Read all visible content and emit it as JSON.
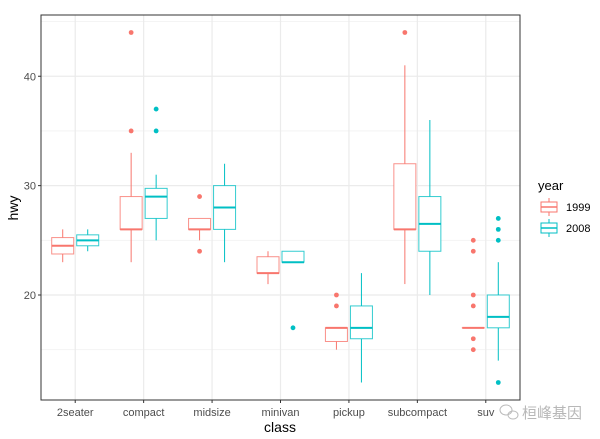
{
  "chart_data": {
    "type": "boxplot",
    "title": "",
    "xlabel": "class",
    "ylabel": "hwy",
    "ylim": [
      10.4,
      45.6
    ],
    "yticks": [
      20,
      30,
      40
    ],
    "grid": true,
    "categories": [
      "2seater",
      "compact",
      "midsize",
      "minivan",
      "pickup",
      "subcompact",
      "suv"
    ],
    "legend": {
      "title": "year",
      "position": "right"
    },
    "series": [
      {
        "name": "1999",
        "color": "#F8766D",
        "boxes": [
          {
            "lower": 23,
            "q1": 23.75,
            "median": 24.5,
            "q3": 25.25,
            "upper": 26,
            "outliers": []
          },
          {
            "lower": 23,
            "q1": 26,
            "median": 26,
            "q3": 29,
            "upper": 33,
            "outliers": [
              35,
              44
            ]
          },
          {
            "lower": 25,
            "q1": 26,
            "median": 26,
            "q3": 27,
            "upper": 27,
            "outliers": [
              29,
              24
            ]
          },
          {
            "lower": 21,
            "q1": 22,
            "median": 22,
            "q3": 23.5,
            "upper": 24,
            "outliers": []
          },
          {
            "lower": 15,
            "q1": 15.75,
            "median": 17,
            "q3": 17,
            "upper": 17,
            "outliers": [
              20,
              19
            ]
          },
          {
            "lower": 21,
            "q1": 26,
            "median": 26,
            "q3": 32,
            "upper": 41,
            "outliers": [
              44
            ]
          },
          {
            "lower": 17,
            "q1": 17,
            "median": 17,
            "q3": 17,
            "upper": 17,
            "outliers": [
              25,
              24,
              20,
              19,
              16,
              15
            ]
          }
        ]
      },
      {
        "name": "2008",
        "color": "#00BFC4",
        "boxes": [
          {
            "lower": 24,
            "q1": 24.5,
            "median": 25,
            "q3": 25.5,
            "upper": 26,
            "outliers": []
          },
          {
            "lower": 25,
            "q1": 27,
            "median": 29,
            "q3": 29.75,
            "upper": 31,
            "outliers": [
              35,
              37
            ]
          },
          {
            "lower": 23,
            "q1": 26,
            "median": 28,
            "q3": 30,
            "upper": 32,
            "outliers": []
          },
          {
            "lower": 23,
            "q1": 23,
            "median": 23,
            "q3": 24,
            "upper": 24,
            "outliers": [
              17
            ]
          },
          {
            "lower": 12,
            "q1": 16,
            "median": 17,
            "q3": 19,
            "upper": 22,
            "outliers": []
          },
          {
            "lower": 20,
            "q1": 24,
            "median": 26.5,
            "q3": 29,
            "upper": 36,
            "outliers": []
          },
          {
            "lower": 14,
            "q1": 17,
            "median": 18,
            "q3": 20,
            "upper": 23,
            "outliers": [
              27,
              26,
              25,
              12
            ]
          }
        ]
      }
    ]
  },
  "watermark": {
    "text": "桓峰基因",
    "icon": "wechat-icon"
  }
}
